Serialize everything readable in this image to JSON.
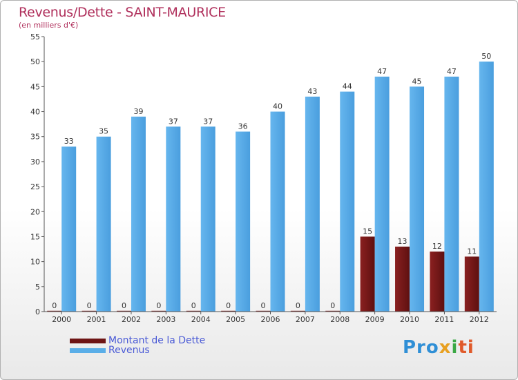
{
  "title": "Revenus/Dette - SAINT-MAURICE",
  "subtitle": "(en milliers d'€)",
  "logo": {
    "p1": "Pro",
    "p2": "x",
    "p3": "i",
    "p4": "ti"
  },
  "colors": {
    "revenus": "#5aaee8",
    "dette": "#7a1a1a",
    "title": "#b0305c",
    "legend_text": "#4a5ad6"
  },
  "chart_data": {
    "type": "bar",
    "categories": [
      "2000",
      "2001",
      "2002",
      "2003",
      "2004",
      "2005",
      "2006",
      "2007",
      "2008",
      "2009",
      "2010",
      "2011",
      "2012"
    ],
    "series": [
      {
        "name": "Montant de la Dette",
        "values": [
          0,
          0,
          0,
          0,
          0,
          0,
          0,
          0,
          0,
          15,
          13,
          12,
          11
        ]
      },
      {
        "name": "Revenus",
        "values": [
          33,
          35,
          39,
          37,
          37,
          36,
          40,
          43,
          44,
          47,
          45,
          47,
          50
        ]
      }
    ],
    "yticks": [
      0,
      5,
      10,
      15,
      20,
      25,
      30,
      35,
      40,
      45,
      50,
      55
    ],
    "ylim": [
      0,
      55
    ],
    "grid": false,
    "legend_position": "bottom-left"
  }
}
